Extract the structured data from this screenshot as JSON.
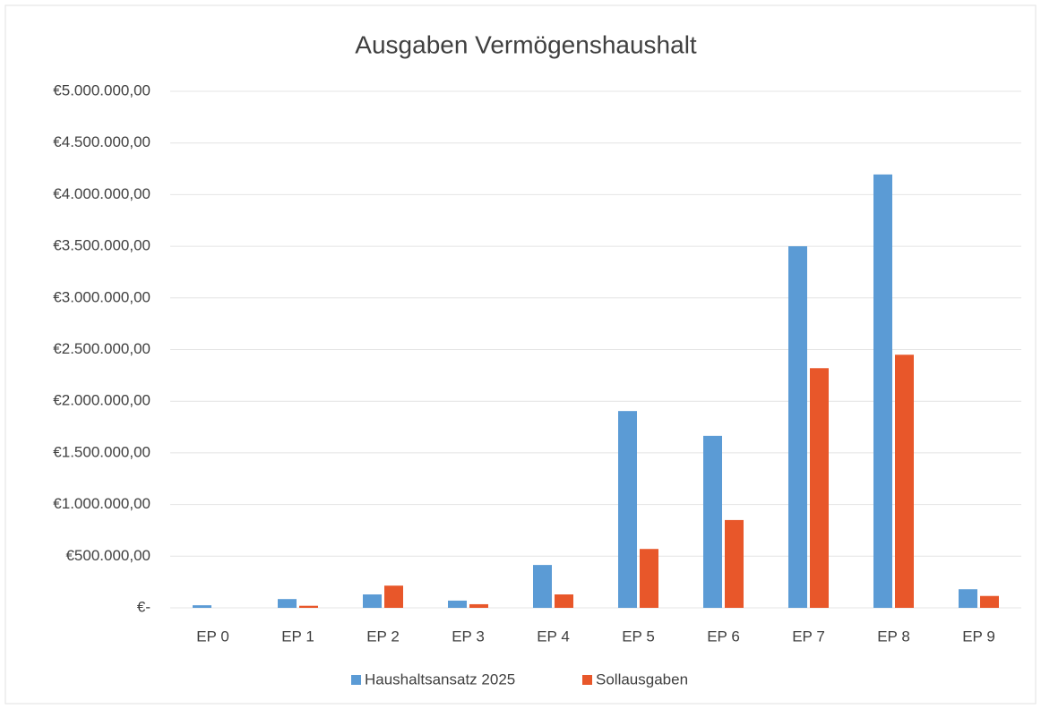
{
  "chart_data": {
    "type": "bar",
    "title": "Ausgaben Vermögenshaushalt",
    "categories": [
      "EP 0",
      "EP 1",
      "EP 2",
      "EP 3",
      "EP 4",
      "EP 5",
      "EP 6",
      "EP 7",
      "EP 8",
      "EP 9"
    ],
    "series": [
      {
        "name": "Haushaltsansatz 2025",
        "color": "#5b9bd5",
        "values": [
          25000,
          85000,
          130000,
          70000,
          415000,
          1905000,
          1665000,
          3500000,
          4195000,
          180000
        ]
      },
      {
        "name": "Sollausgaben",
        "color": "#e8572a",
        "values": [
          0,
          20000,
          215000,
          35000,
          130000,
          570000,
          850000,
          2320000,
          2450000,
          115000
        ]
      }
    ],
    "ylim": [
      0,
      5000000
    ],
    "yticks": [
      {
        "value": 0,
        "label": "€-"
      },
      {
        "value": 500000,
        "label": "€500.000,00"
      },
      {
        "value": 1000000,
        "label": "€1.000.000,00"
      },
      {
        "value": 1500000,
        "label": "€1.500.000,00"
      },
      {
        "value": 2000000,
        "label": "€2.000.000,00"
      },
      {
        "value": 2500000,
        "label": "€2.500.000,00"
      },
      {
        "value": 3000000,
        "label": "€3.000.000,00"
      },
      {
        "value": 3500000,
        "label": "€3.500.000,00"
      },
      {
        "value": 4000000,
        "label": "€4.000.000,00"
      },
      {
        "value": 4500000,
        "label": "€4.500.000,00"
      },
      {
        "value": 5000000,
        "label": "€5.000.000,00"
      }
    ],
    "grid": true,
    "legend": "bottom"
  }
}
